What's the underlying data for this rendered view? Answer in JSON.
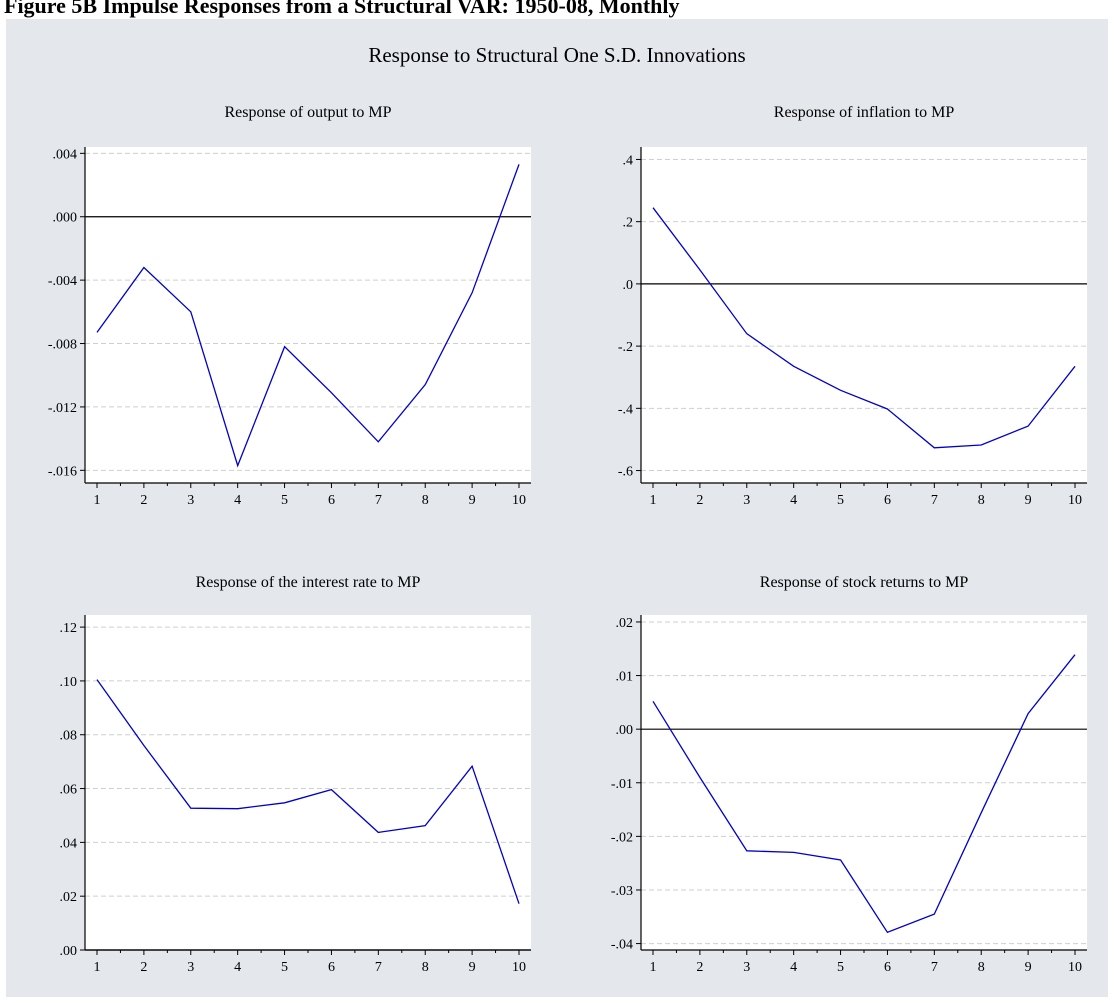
{
  "figure_caption": "Figure 5B Impulse Responses from a Structural VAR: 1950-08, Monthly",
  "supertitle": "Response to Structural One S.D. Innovations",
  "colors": {
    "panel_bg": "#e4e8ed",
    "plot_bg": "#ffffff",
    "line": "#0000cc",
    "grid": "#cfcfcf",
    "zero_line": "#000000"
  },
  "chart_data": [
    {
      "type": "line",
      "title": "Response of output to MP",
      "x": [
        1,
        2,
        3,
        4,
        5,
        6,
        7,
        8,
        9,
        10
      ],
      "series": [
        {
          "values": [
            -0.0073,
            -0.0032,
            -0.006,
            -0.0157,
            -0.0082,
            -0.0111,
            -0.0142,
            -0.0106,
            -0.0048,
            0.0033
          ]
        }
      ],
      "ylim": [
        -0.0168,
        0.0044
      ],
      "yticks": [
        0.004,
        0.0,
        -0.004,
        -0.008,
        -0.012,
        -0.016
      ],
      "ytick_labels": [
        ".004",
        ".000",
        "-.004",
        "-.008",
        "-.012",
        "-.016"
      ],
      "xtick_labels": [
        "1",
        "2",
        "3",
        "4",
        "5",
        "6",
        "7",
        "8",
        "9",
        "10"
      ],
      "zero_line": 0,
      "grid": true
    },
    {
      "type": "line",
      "title": "Response of inflation to MP",
      "x": [
        1,
        2,
        3,
        4,
        5,
        6,
        7,
        8,
        9,
        10
      ],
      "series": [
        {
          "values": [
            0.245,
            0.045,
            -0.16,
            -0.265,
            -0.342,
            -0.402,
            -0.527,
            -0.518,
            -0.457,
            -0.265
          ]
        }
      ],
      "ylim": [
        -0.64,
        0.44
      ],
      "yticks": [
        0.4,
        0.2,
        0.0,
        -0.2,
        -0.4,
        -0.6
      ],
      "ytick_labels": [
        ".4",
        ".2",
        ".0",
        "-.2",
        "-.4",
        "-.6"
      ],
      "xtick_labels": [
        "1",
        "2",
        "3",
        "4",
        "5",
        "6",
        "7",
        "8",
        "9",
        "10"
      ],
      "zero_line": 0,
      "grid": true
    },
    {
      "type": "line",
      "title": "Response of the interest rate to MP",
      "x": [
        1,
        2,
        3,
        4,
        5,
        6,
        7,
        8,
        9,
        10
      ],
      "series": [
        {
          "values": [
            0.1005,
            0.076,
            0.0527,
            0.0525,
            0.0547,
            0.0596,
            0.0437,
            0.0462,
            0.0683,
            0.0172
          ]
        }
      ],
      "ylim": [
        0.0,
        0.1245
      ],
      "yticks": [
        0.12,
        0.1,
        0.08,
        0.06,
        0.04,
        0.02,
        0.0
      ],
      "ytick_labels": [
        ".12",
        ".10",
        ".08",
        ".06",
        ".04",
        ".02",
        ".00"
      ],
      "xtick_labels": [
        "1",
        "2",
        "3",
        "4",
        "5",
        "6",
        "7",
        "8",
        "9",
        "10"
      ],
      "zero_line": 0,
      "grid": true
    },
    {
      "type": "line",
      "title": "Response of stock returns to MP",
      "x": [
        1,
        2,
        3,
        4,
        5,
        6,
        7,
        8,
        9,
        10
      ],
      "series": [
        {
          "values": [
            0.0052,
            -0.009,
            -0.0227,
            -0.023,
            -0.0244,
            -0.0379,
            -0.0345,
            -0.0156,
            0.0029,
            0.0139
          ]
        }
      ],
      "ylim": [
        -0.0412,
        0.0213
      ],
      "yticks": [
        0.02,
        0.01,
        0.0,
        -0.01,
        -0.02,
        -0.03,
        -0.04
      ],
      "ytick_labels": [
        ".02",
        ".01",
        ".00",
        "-.01",
        "-.02",
        "-.03",
        "-.04"
      ],
      "xtick_labels": [
        "1",
        "2",
        "3",
        "4",
        "5",
        "6",
        "7",
        "8",
        "9",
        "10"
      ],
      "zero_line": 0,
      "grid": true
    }
  ]
}
